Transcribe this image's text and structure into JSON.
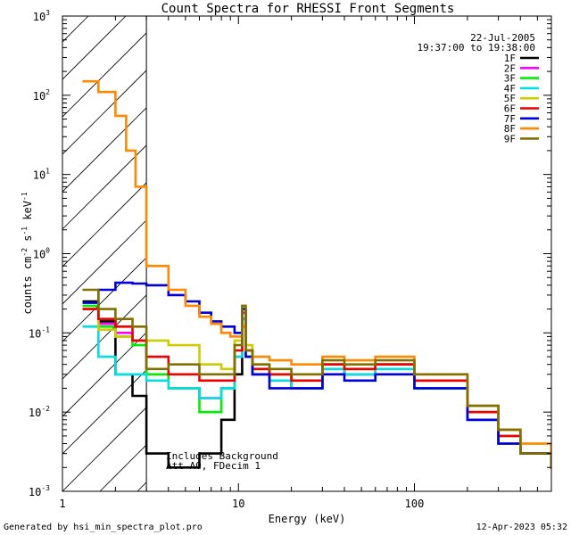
{
  "chart_data": {
    "type": "line",
    "title": "Count Spectra for RHESSI Front Segments",
    "xlabel": "Energy (keV)",
    "ylabel_base": "counts cm",
    "ylabel_exp1": "-2",
    "ylabel_mid": " s",
    "ylabel_exp2": "-1",
    "ylabel_unit": " keV",
    "ylabel_exp3": "-1",
    "xscale": "log",
    "yscale": "log",
    "xlim": [
      1,
      600
    ],
    "ylim": [
      0.001,
      1000
    ],
    "x_ticks": [
      {
        "value": 1,
        "label": "1"
      },
      {
        "value": 10,
        "label": "10"
      },
      {
        "value": 100,
        "label": "100"
      }
    ],
    "y_ticks": [
      {
        "value": 0.001,
        "base": "10",
        "exp": "-3"
      },
      {
        "value": 0.01,
        "base": "10",
        "exp": "-2"
      },
      {
        "value": 0.1,
        "base": "10",
        "exp": "-1"
      },
      {
        "value": 1,
        "base": "10",
        "exp": "0"
      },
      {
        "value": 10,
        "base": "10",
        "exp": "1"
      },
      {
        "value": 100,
        "base": "10",
        "exp": "2"
      },
      {
        "value": 1000,
        "base": "10",
        "exp": "3"
      }
    ],
    "excluded_region_max_energy": 3,
    "date": "22-Jul-2005",
    "time_range": "19:37:00 to 19:38:00",
    "annotation_line1": "Includes Background",
    "annotation_line2": "Att A0, FDecim 1",
    "footer_left": "Generated by hsi_min_spectra_plot.pro",
    "footer_right": "12-Apr-2023 05:32",
    "series": [
      {
        "name": "1F",
        "color": "#000000",
        "points": [
          [
            1.3,
            0.25
          ],
          [
            1.6,
            0.14
          ],
          [
            2.0,
            0.03
          ],
          [
            2.5,
            0.016
          ],
          [
            3.0,
            0.003
          ],
          [
            4,
            0.002
          ],
          [
            6,
            0.003
          ],
          [
            8,
            0.008
          ],
          [
            9.5,
            0.03
          ],
          [
            10.5,
            0.15
          ],
          [
            11,
            0.05
          ],
          [
            12,
            0.03
          ],
          [
            15,
            0.03
          ],
          [
            20,
            0.02
          ],
          [
            30,
            0.04
          ],
          [
            40,
            0.03
          ],
          [
            60,
            0.04
          ],
          [
            100,
            0.02
          ],
          [
            200,
            0.008
          ],
          [
            300,
            0.004
          ],
          [
            400,
            0.003
          ],
          [
            600,
            0.002
          ]
        ]
      },
      {
        "name": "2F",
        "color": "#ff00ff",
        "points": [
          [
            1.3,
            0.2
          ],
          [
            1.6,
            0.13
          ],
          [
            2.0,
            0.1
          ],
          [
            2.5,
            0.08
          ],
          [
            3.0,
            0.03
          ],
          [
            4,
            0.02
          ],
          [
            6,
            0.015
          ],
          [
            8,
            0.02
          ],
          [
            9.5,
            0.05
          ],
          [
            10.5,
            0.18
          ],
          [
            11,
            0.06
          ],
          [
            12,
            0.03
          ],
          [
            15,
            0.025
          ],
          [
            20,
            0.02
          ],
          [
            30,
            0.035
          ],
          [
            40,
            0.03
          ],
          [
            60,
            0.04
          ],
          [
            100,
            0.025
          ],
          [
            200,
            0.01
          ],
          [
            300,
            0.006
          ],
          [
            400,
            0.003
          ],
          [
            600,
            0.002
          ]
        ]
      },
      {
        "name": "3F",
        "color": "#00ee00",
        "points": [
          [
            1.3,
            0.22
          ],
          [
            1.6,
            0.12
          ],
          [
            2.0,
            0.09
          ],
          [
            2.5,
            0.07
          ],
          [
            3.0,
            0.03
          ],
          [
            4,
            0.02
          ],
          [
            6,
            0.01
          ],
          [
            8,
            0.02
          ],
          [
            9.5,
            0.06
          ],
          [
            10.5,
            0.2
          ],
          [
            11,
            0.06
          ],
          [
            12,
            0.035
          ],
          [
            15,
            0.03
          ],
          [
            20,
            0.025
          ],
          [
            30,
            0.04
          ],
          [
            40,
            0.035
          ],
          [
            60,
            0.04
          ],
          [
            100,
            0.02
          ],
          [
            200,
            0.01
          ],
          [
            300,
            0.005
          ],
          [
            400,
            0.003
          ],
          [
            600,
            0.002
          ]
        ]
      },
      {
        "name": "4F",
        "color": "#00e0e0",
        "points": [
          [
            1.3,
            0.12
          ],
          [
            1.6,
            0.05
          ],
          [
            2.0,
            0.03
          ],
          [
            2.5,
            0.03
          ],
          [
            3.0,
            0.025
          ],
          [
            4,
            0.02
          ],
          [
            6,
            0.015
          ],
          [
            8,
            0.02
          ],
          [
            9.5,
            0.05
          ],
          [
            10.5,
            0.15
          ],
          [
            11,
            0.05
          ],
          [
            12,
            0.03
          ],
          [
            15,
            0.025
          ],
          [
            20,
            0.02
          ],
          [
            30,
            0.035
          ],
          [
            40,
            0.03
          ],
          [
            60,
            0.035
          ],
          [
            100,
            0.02
          ],
          [
            200,
            0.008
          ],
          [
            300,
            0.005
          ],
          [
            400,
            0.003
          ],
          [
            600,
            0.002
          ]
        ]
      },
      {
        "name": "5F",
        "color": "#cccc00",
        "points": [
          [
            1.3,
            0.2
          ],
          [
            1.6,
            0.11
          ],
          [
            2.0,
            0.09
          ],
          [
            2.5,
            0.08
          ],
          [
            3.0,
            0.08
          ],
          [
            4,
            0.07
          ],
          [
            6,
            0.04
          ],
          [
            8,
            0.035
          ],
          [
            9.5,
            0.08
          ],
          [
            10.5,
            0.22
          ],
          [
            11,
            0.07
          ],
          [
            12,
            0.04
          ],
          [
            15,
            0.035
          ],
          [
            20,
            0.03
          ],
          [
            30,
            0.04
          ],
          [
            40,
            0.035
          ],
          [
            60,
            0.04
          ],
          [
            100,
            0.025
          ],
          [
            200,
            0.01
          ],
          [
            300,
            0.006
          ],
          [
            400,
            0.004
          ],
          [
            600,
            0.002
          ]
        ]
      },
      {
        "name": "6F",
        "color": "#ee0000",
        "points": [
          [
            1.3,
            0.2
          ],
          [
            1.6,
            0.15
          ],
          [
            2.0,
            0.12
          ],
          [
            2.5,
            0.08
          ],
          [
            3.0,
            0.05
          ],
          [
            4,
            0.03
          ],
          [
            6,
            0.025
          ],
          [
            8,
            0.025
          ],
          [
            9.5,
            0.06
          ],
          [
            10.5,
            0.2
          ],
          [
            11,
            0.06
          ],
          [
            12,
            0.035
          ],
          [
            15,
            0.03
          ],
          [
            20,
            0.025
          ],
          [
            30,
            0.04
          ],
          [
            40,
            0.035
          ],
          [
            60,
            0.04
          ],
          [
            100,
            0.025
          ],
          [
            200,
            0.01
          ],
          [
            300,
            0.005
          ],
          [
            400,
            0.003
          ],
          [
            600,
            0.002
          ]
        ]
      },
      {
        "name": "7F",
        "color": "#0000dd",
        "points": [
          [
            1.3,
            0.24
          ],
          [
            1.6,
            0.35
          ],
          [
            2.0,
            0.43
          ],
          [
            2.5,
            0.42
          ],
          [
            3.0,
            0.4
          ],
          [
            4,
            0.3
          ],
          [
            5,
            0.25
          ],
          [
            6,
            0.18
          ],
          [
            7,
            0.14
          ],
          [
            8,
            0.12
          ],
          [
            9.5,
            0.1
          ],
          [
            10.5,
            0.2
          ],
          [
            11,
            0.05
          ],
          [
            12,
            0.03
          ],
          [
            15,
            0.02
          ],
          [
            20,
            0.02
          ],
          [
            30,
            0.03
          ],
          [
            40,
            0.025
          ],
          [
            60,
            0.03
          ],
          [
            100,
            0.02
          ],
          [
            200,
            0.008
          ],
          [
            300,
            0.004
          ],
          [
            400,
            0.003
          ],
          [
            600,
            0.002
          ]
        ]
      },
      {
        "name": "8F",
        "color": "#ff8800",
        "points": [
          [
            1.3,
            150
          ],
          [
            1.6,
            110
          ],
          [
            2.0,
            55
          ],
          [
            2.3,
            20
          ],
          [
            2.6,
            7
          ],
          [
            3.0,
            0.7
          ],
          [
            4,
            0.35
          ],
          [
            5,
            0.22
          ],
          [
            6,
            0.16
          ],
          [
            7,
            0.13
          ],
          [
            8,
            0.1
          ],
          [
            9,
            0.09
          ],
          [
            10.5,
            0.12
          ],
          [
            11,
            0.06
          ],
          [
            12,
            0.05
          ],
          [
            15,
            0.045
          ],
          [
            20,
            0.04
          ],
          [
            30,
            0.05
          ],
          [
            40,
            0.045
          ],
          [
            60,
            0.05
          ],
          [
            100,
            0.03
          ],
          [
            200,
            0.012
          ],
          [
            300,
            0.006
          ],
          [
            400,
            0.004
          ],
          [
            600,
            0.002
          ]
        ]
      },
      {
        "name": "9F",
        "color": "#807000",
        "points": [
          [
            1.3,
            0.35
          ],
          [
            1.6,
            0.2
          ],
          [
            2.0,
            0.15
          ],
          [
            2.5,
            0.12
          ],
          [
            3.0,
            0.035
          ],
          [
            4,
            0.04
          ],
          [
            6,
            0.03
          ],
          [
            8,
            0.03
          ],
          [
            9.5,
            0.07
          ],
          [
            10.5,
            0.22
          ],
          [
            11,
            0.06
          ],
          [
            12,
            0.04
          ],
          [
            15,
            0.035
          ],
          [
            20,
            0.03
          ],
          [
            30,
            0.045
          ],
          [
            40,
            0.04
          ],
          [
            60,
            0.045
          ],
          [
            100,
            0.03
          ],
          [
            200,
            0.012
          ],
          [
            300,
            0.006
          ],
          [
            400,
            0.003
          ],
          [
            600,
            0.002
          ]
        ]
      }
    ]
  }
}
